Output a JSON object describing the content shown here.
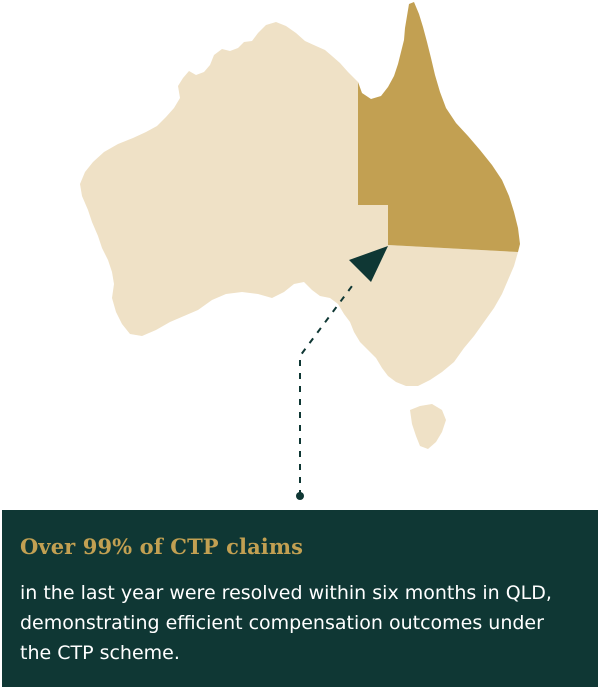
{
  "colors": {
    "land": "#efe1c6",
    "highlight": "#c2a052",
    "accent_dark": "#0f3734",
    "card_bg": "#0f3734",
    "card_title": "#c2a052",
    "card_text": "#ffffff"
  },
  "map": {
    "highlighted_region": "QLD",
    "marker_icon": "pointer-arrow-icon"
  },
  "card": {
    "title": "Over 99% of CTP claims",
    "body": "in the last year were resolved within six months in QLD, demonstrating efficient compensation outcomes under the CTP scheme."
  }
}
